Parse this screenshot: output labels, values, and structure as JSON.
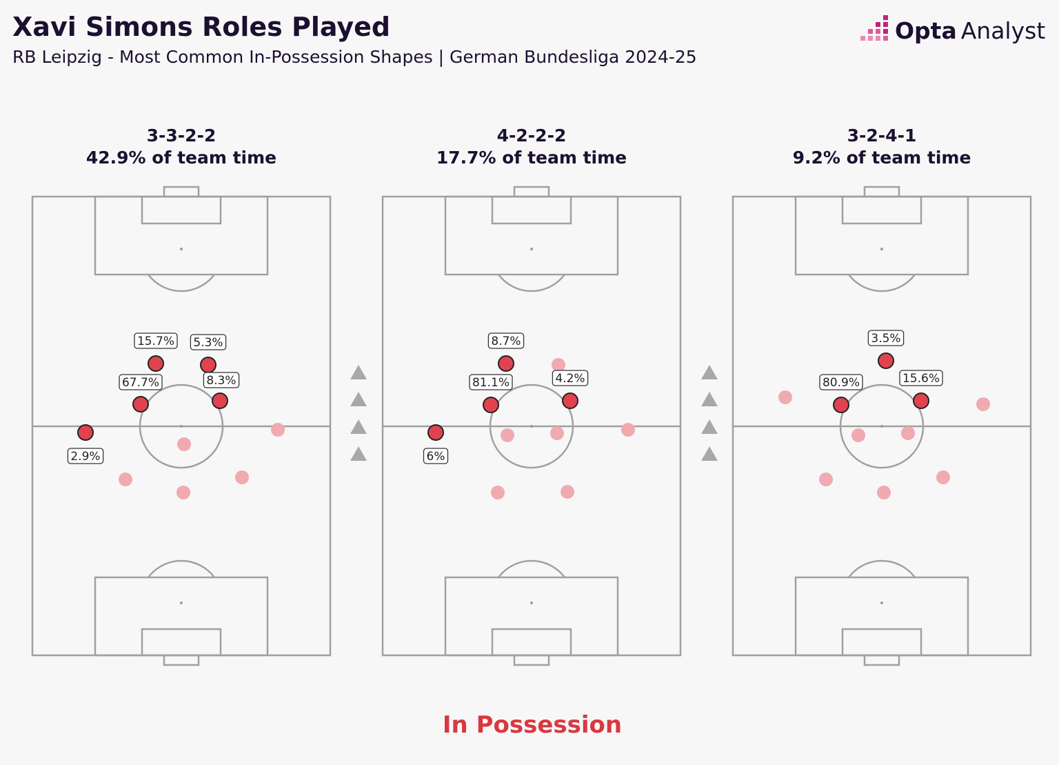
{
  "header": {
    "title": "Xavi Simons Roles Played",
    "subtitle": "RB Leipzig - Most Common In-Possession Shapes | German Bundesliga 2024-25"
  },
  "logo": {
    "brand": "Opta",
    "product": "Analyst"
  },
  "pitches": [
    {
      "formation": "3-3-2-2",
      "share": "42.9% of team time",
      "roles": [
        {
          "label": "15.7%"
        },
        {
          "label": "5.3%"
        },
        {
          "label": "67.7%"
        },
        {
          "label": "8.3%"
        },
        {
          "label": "2.9%"
        }
      ]
    },
    {
      "formation": "4-2-2-2",
      "share": "17.7% of team time",
      "roles": [
        {
          "label": "8.7%"
        },
        {
          "label": "81.1%"
        },
        {
          "label": "4.2%"
        },
        {
          "label": "6%"
        }
      ]
    },
    {
      "formation": "3-2-4-1",
      "share": "9.2% of team time",
      "roles": [
        {
          "label": "3.5%"
        },
        {
          "label": "80.9%"
        },
        {
          "label": "15.6%"
        }
      ]
    }
  ],
  "footer": "In Possession"
}
